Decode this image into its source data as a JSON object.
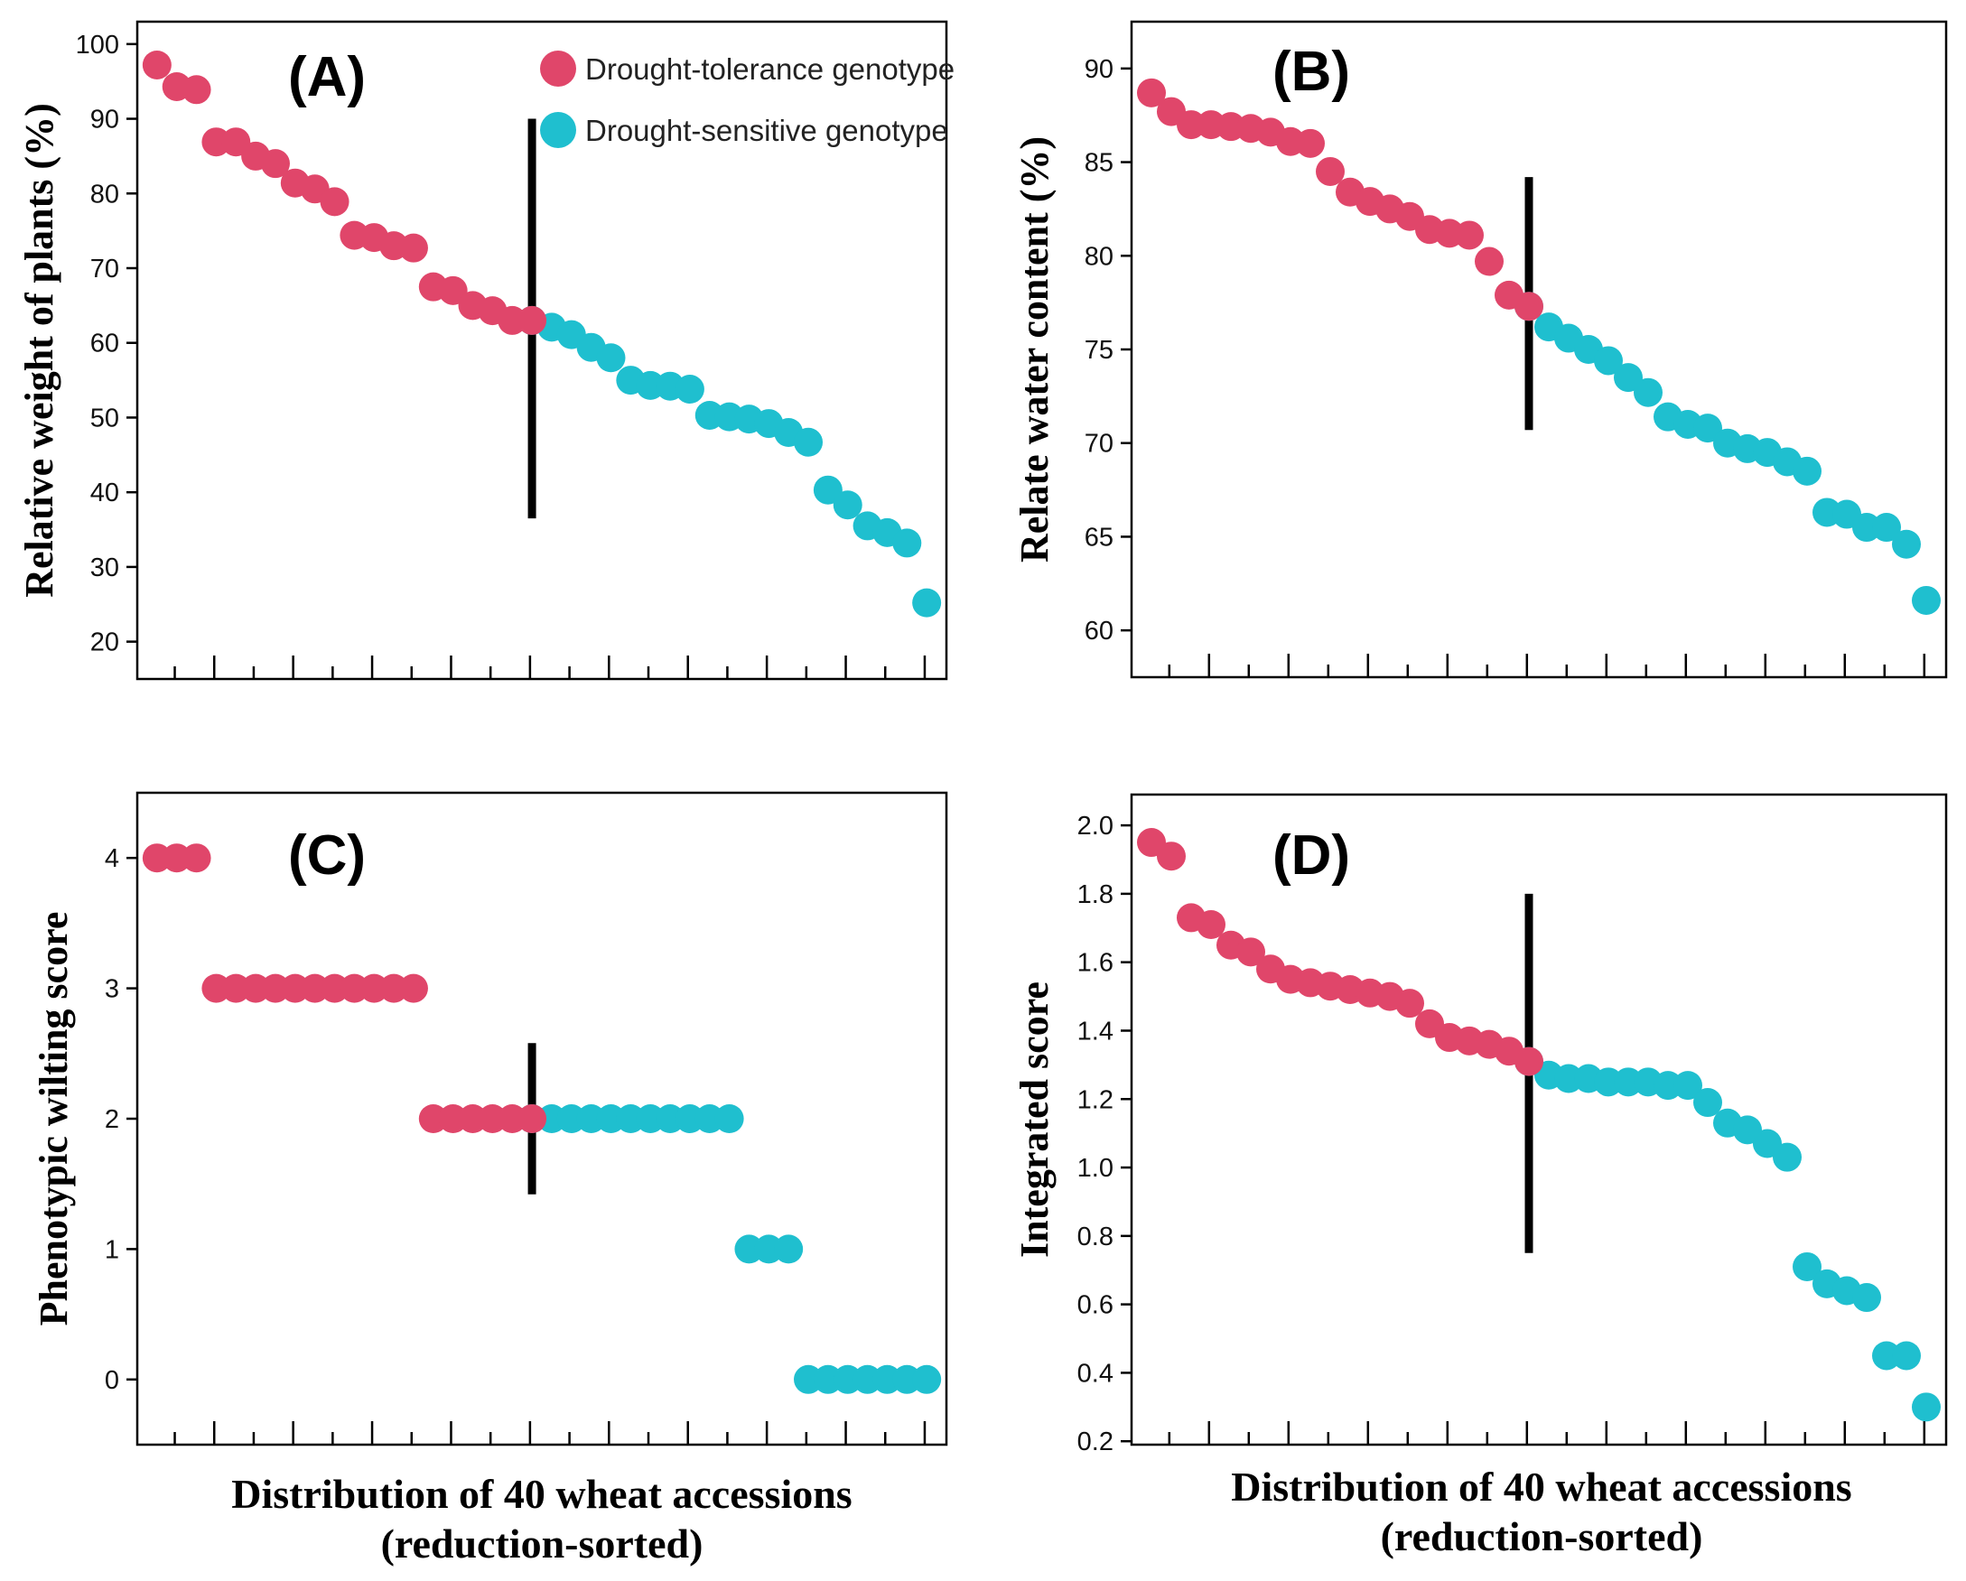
{
  "colors": {
    "tolerant": "#e0466a",
    "sensitive": "#1fbfcf",
    "axis": "#000000",
    "divider": "#000000"
  },
  "legend": {
    "tolerant_label": "Drought-tolerance  genotype",
    "sensitive_label": "Drought-sensitive  genotype"
  },
  "x_axis_label": {
    "line1": "Distribution of 40 wheat accessions",
    "line2": "(reduction-sorted)"
  },
  "chart_data": [
    {
      "panel": "A",
      "type": "scatter",
      "title": "(A)",
      "ylabel": "Relative weight of plants (%)",
      "xlabel": "Distribution of 40 wheat accessions (reduction-sorted)",
      "ylim": [
        15,
        103
      ],
      "yticks": [
        20,
        30,
        40,
        50,
        60,
        70,
        80,
        90,
        100
      ],
      "ytick_labels": [
        "20",
        "30",
        "40",
        "50",
        "60",
        "70",
        "80",
        "90",
        "100"
      ],
      "xlim": [
        0.0,
        41.0
      ],
      "divider": {
        "x": 20.0,
        "y_from": 36.5,
        "y_to": 90
      },
      "legend": "top-right",
      "series": [
        {
          "name": "Drought-tolerance  genotype",
          "color": "tolerant",
          "x": [
            1,
            2,
            3,
            4,
            5,
            6,
            7,
            8,
            9,
            10,
            11,
            12,
            13,
            14,
            15,
            16,
            17,
            18,
            19,
            20
          ],
          "y": [
            97.2,
            94.3,
            93.9,
            86.9,
            86.9,
            85.0,
            84.0,
            81.4,
            80.6,
            78.9,
            74.4,
            74.1,
            73.0,
            72.7,
            67.5,
            67.0,
            65.0,
            64.3,
            63.0,
            63.0
          ]
        },
        {
          "name": "Drought-sensitive  genotype",
          "color": "sensitive",
          "x": [
            20,
            21,
            22,
            23,
            24,
            25,
            26,
            27,
            28,
            29,
            30,
            31,
            32,
            33,
            34,
            35,
            36,
            37,
            38,
            39,
            40
          ],
          "y": [
            63.0,
            62.1,
            61.1,
            59.4,
            58.0,
            55.0,
            54.3,
            54.2,
            53.8,
            50.3,
            50.1,
            49.8,
            49.2,
            48.0,
            46.7,
            40.3,
            38.3,
            35.5,
            34.6,
            33.2,
            25.2
          ]
        }
      ]
    },
    {
      "panel": "B",
      "type": "scatter",
      "title": "(B)",
      "ylabel": "Relate water content (%)",
      "xlabel": "Distribution of 40 wheat accessions (reduction-sorted)",
      "ylim": [
        57.5,
        92.5
      ],
      "yticks": [
        60,
        65,
        70,
        75,
        80,
        85,
        90
      ],
      "ytick_labels": [
        "60",
        "65",
        "70",
        "75",
        "80",
        "85",
        "90"
      ],
      "xlim": [
        0.0,
        41.0
      ],
      "divider": {
        "x": 20.0,
        "y_from": 70.7,
        "y_to": 84.2
      },
      "series": [
        {
          "name": "Drought-tolerance  genotype",
          "color": "tolerant",
          "x": [
            1,
            2,
            3,
            4,
            5,
            6,
            7,
            8,
            9,
            10,
            11,
            12,
            13,
            14,
            15,
            16,
            17,
            18,
            19,
            20
          ],
          "y": [
            88.7,
            87.7,
            87.0,
            87.0,
            86.9,
            86.8,
            86.6,
            86.1,
            86.0,
            84.5,
            83.4,
            82.9,
            82.5,
            82.1,
            81.4,
            81.2,
            81.1,
            79.7,
            77.9,
            77.3
          ]
        },
        {
          "name": "Drought-sensitive  genotype",
          "color": "sensitive",
          "x": [
            20,
            21,
            22,
            23,
            24,
            25,
            26,
            27,
            28,
            29,
            30,
            31,
            32,
            33,
            34,
            35,
            36,
            37,
            38,
            39,
            40
          ],
          "y": [
            77.3,
            76.2,
            75.6,
            75.0,
            74.4,
            73.5,
            72.7,
            71.4,
            71.0,
            70.8,
            70.0,
            69.7,
            69.5,
            69.0,
            68.5,
            66.3,
            66.2,
            65.5,
            65.5,
            64.6,
            61.6
          ]
        }
      ]
    },
    {
      "panel": "C",
      "type": "scatter",
      "title": "(C)",
      "ylabel": "Phenotypic wilting score",
      "xlabel": "Distribution of 40 wheat accessions (reduction-sorted)",
      "ylim": [
        -0.5,
        4.5
      ],
      "yticks": [
        0,
        1,
        2,
        3,
        4
      ],
      "ytick_labels": [
        "0",
        "1",
        "2",
        "3",
        "4"
      ],
      "xlim": [
        0.0,
        41.0
      ],
      "divider": {
        "x": 20.0,
        "y_from": 1.42,
        "y_to": 2.58
      },
      "series": [
        {
          "name": "Drought-tolerance  genotype",
          "color": "tolerant",
          "x": [
            1,
            2,
            3,
            4,
            5,
            6,
            7,
            8,
            9,
            10,
            11,
            12,
            13,
            14,
            15,
            16,
            17,
            18,
            19,
            20
          ],
          "y": [
            4,
            4,
            4,
            3,
            3,
            3,
            3,
            3,
            3,
            3,
            3,
            3,
            3,
            3,
            2,
            2,
            2,
            2,
            2,
            2
          ]
        },
        {
          "name": "Drought-sensitive  genotype",
          "color": "sensitive",
          "x": [
            20,
            21,
            22,
            23,
            24,
            25,
            26,
            27,
            28,
            29,
            30,
            31,
            32,
            33,
            34,
            35,
            36,
            37,
            38,
            39,
            40
          ],
          "y": [
            2,
            2,
            2,
            2,
            2,
            2,
            2,
            2,
            2,
            2,
            2,
            1,
            1,
            1,
            0,
            0,
            0,
            0,
            0,
            0,
            0
          ]
        }
      ]
    },
    {
      "panel": "D",
      "type": "scatter",
      "title": "(D)",
      "ylabel": "Integrated score",
      "xlabel": "Distribution of 40 wheat accessions (reduction-sorted)",
      "ylim": [
        0.19,
        2.09
      ],
      "yticks": [
        0.2,
        0.4,
        0.6,
        0.8,
        1.0,
        1.2,
        1.4,
        1.6,
        1.8,
        2.0
      ],
      "ytick_labels": [
        "0.2",
        "0.4",
        "0.6",
        "0.8",
        "1.0",
        "1.2",
        "1.4",
        "1.6",
        "1.8",
        "2.0"
      ],
      "xlim": [
        0.0,
        41.0
      ],
      "divider": {
        "x": 20.0,
        "y_from": 0.75,
        "y_to": 1.8
      },
      "series": [
        {
          "name": "Drought-tolerance  genotype",
          "color": "tolerant",
          "x": [
            1,
            2,
            3,
            4,
            5,
            6,
            7,
            8,
            9,
            10,
            11,
            12,
            13,
            14,
            15,
            16,
            17,
            18,
            19,
            20
          ],
          "y": [
            1.95,
            1.91,
            1.73,
            1.71,
            1.65,
            1.63,
            1.58,
            1.55,
            1.54,
            1.53,
            1.52,
            1.51,
            1.5,
            1.48,
            1.42,
            1.38,
            1.37,
            1.36,
            1.34,
            1.31
          ]
        },
        {
          "name": "Drought-sensitive  genotype",
          "color": "sensitive",
          "x": [
            20,
            21,
            22,
            23,
            24,
            25,
            26,
            27,
            28,
            29,
            30,
            31,
            32,
            33,
            34,
            35,
            36,
            37,
            38,
            39,
            40
          ],
          "y": [
            1.31,
            1.27,
            1.26,
            1.26,
            1.25,
            1.25,
            1.25,
            1.24,
            1.24,
            1.19,
            1.13,
            1.11,
            1.07,
            1.03,
            0.71,
            0.66,
            0.64,
            0.62,
            0.45,
            0.45,
            0.3
          ]
        }
      ]
    }
  ]
}
